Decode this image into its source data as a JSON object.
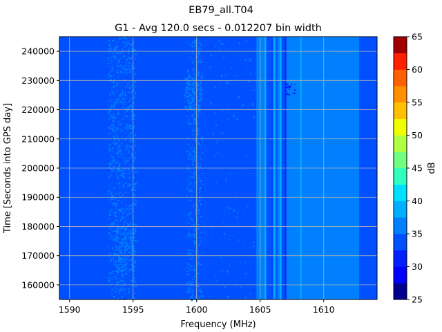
{
  "chart_data": {
    "type": "heatmap",
    "title": "EB79_all.T04",
    "subtitle": "G1 - Avg 120.0 secs - 0.012207 bin width",
    "xlabel": "Frequency (MHz)",
    "ylabel": "Time [Seconds into GPS day]",
    "xlim": [
      1589.2,
      1614.2
    ],
    "ylim": [
      155000,
      245000
    ],
    "x_ticks": [
      1590,
      1595,
      1600,
      1605,
      1610
    ],
    "x_tick_labels": [
      "1590",
      "1595",
      "1600",
      "1605",
      "1610"
    ],
    "y_ticks": [
      160000,
      170000,
      180000,
      190000,
      200000,
      210000,
      220000,
      230000,
      240000
    ],
    "y_tick_labels": [
      "160000",
      "170000",
      "180000",
      "190000",
      "200000",
      "210000",
      "220000",
      "230000",
      "240000"
    ],
    "grid": true,
    "colorbar": {
      "label": "dB",
      "min": 25,
      "max": 65,
      "step": 2.5,
      "ticks": [
        25,
        30,
        35,
        40,
        45,
        50,
        55,
        60,
        65
      ],
      "tick_labels": [
        "25",
        "30",
        "35",
        "40",
        "45",
        "50",
        "55",
        "60",
        "65"
      ],
      "colors": [
        "#00008f",
        "#0000ff",
        "#0020ff",
        "#0050ff",
        "#0080ff",
        "#00b0ff",
        "#00e0ff",
        "#30ffc0",
        "#70ff80",
        "#b0ff40",
        "#f0ff00",
        "#ffc000",
        "#ff9000",
        "#ff6000",
        "#ff2000",
        "#a00000"
      ]
    },
    "base_level_db": 32.5,
    "frequency_bands": [
      {
        "from": 1589.2,
        "to": 1589.6,
        "db": 33
      },
      {
        "from": 1589.6,
        "to": 1604.7,
        "db": 32.5
      },
      {
        "from": 1604.7,
        "to": 1605.5,
        "db": 35.5
      },
      {
        "from": 1605.5,
        "to": 1606.1,
        "db": 33
      },
      {
        "from": 1606.1,
        "to": 1606.7,
        "db": 35.5
      },
      {
        "from": 1606.7,
        "to": 1607.0,
        "db": 34.5
      },
      {
        "from": 1607.0,
        "to": 1607.3,
        "db": 36.5
      },
      {
        "from": 1607.3,
        "to": 1607.8,
        "db": 35.5
      },
      {
        "from": 1607.8,
        "to": 1612.8,
        "db": 36
      },
      {
        "from": 1612.8,
        "to": 1613.3,
        "db": 34
      },
      {
        "from": 1613.3,
        "to": 1614.2,
        "db": 33
      }
    ],
    "narrow_lines": [
      {
        "freq": 1589.9,
        "db": 33
      },
      {
        "freq": 1600.0,
        "db": 35.5
      },
      {
        "freq": 1602.8,
        "db": 33.5
      },
      {
        "freq": 1605.4,
        "db": 38.5
      },
      {
        "freq": 1606.1,
        "db": 38
      },
      {
        "freq": 1606.3,
        "db": 34
      },
      {
        "freq": 1606.6,
        "db": 38.5
      },
      {
        "freq": 1607.0,
        "db": 31
      },
      {
        "freq": 1608.2,
        "db": 37.5
      }
    ],
    "speckle_regions": [
      {
        "f_from": 1593.0,
        "f_to": 1595.2,
        "t_from": 155000,
        "t_to": 245000,
        "density": 0.35,
        "db": 35.5
      },
      {
        "f_from": 1593.6,
        "f_to": 1595.0,
        "t_from": 165000,
        "t_to": 180000,
        "density": 0.6,
        "db": 35.5
      },
      {
        "f_from": 1599.2,
        "f_to": 1600.4,
        "t_from": 155000,
        "t_to": 245000,
        "density": 0.3,
        "db": 35.5
      },
      {
        "f_from": 1599.0,
        "f_to": 1600.3,
        "t_from": 220000,
        "t_to": 231000,
        "density": 0.7,
        "db": 35.5
      },
      {
        "f_from": 1610.0,
        "f_to": 1611.2,
        "t_from": 212000,
        "t_to": 220000,
        "density": 0.5,
        "db": 37
      },
      {
        "f_from": 1607.0,
        "f_to": 1607.7,
        "t_from": 225000,
        "t_to": 229000,
        "density": 0.6,
        "db": 30
      },
      {
        "f_from": 1601.0,
        "f_to": 1604.5,
        "t_from": 155000,
        "t_to": 245000,
        "density": 0.03,
        "db": 35.5
      }
    ]
  }
}
